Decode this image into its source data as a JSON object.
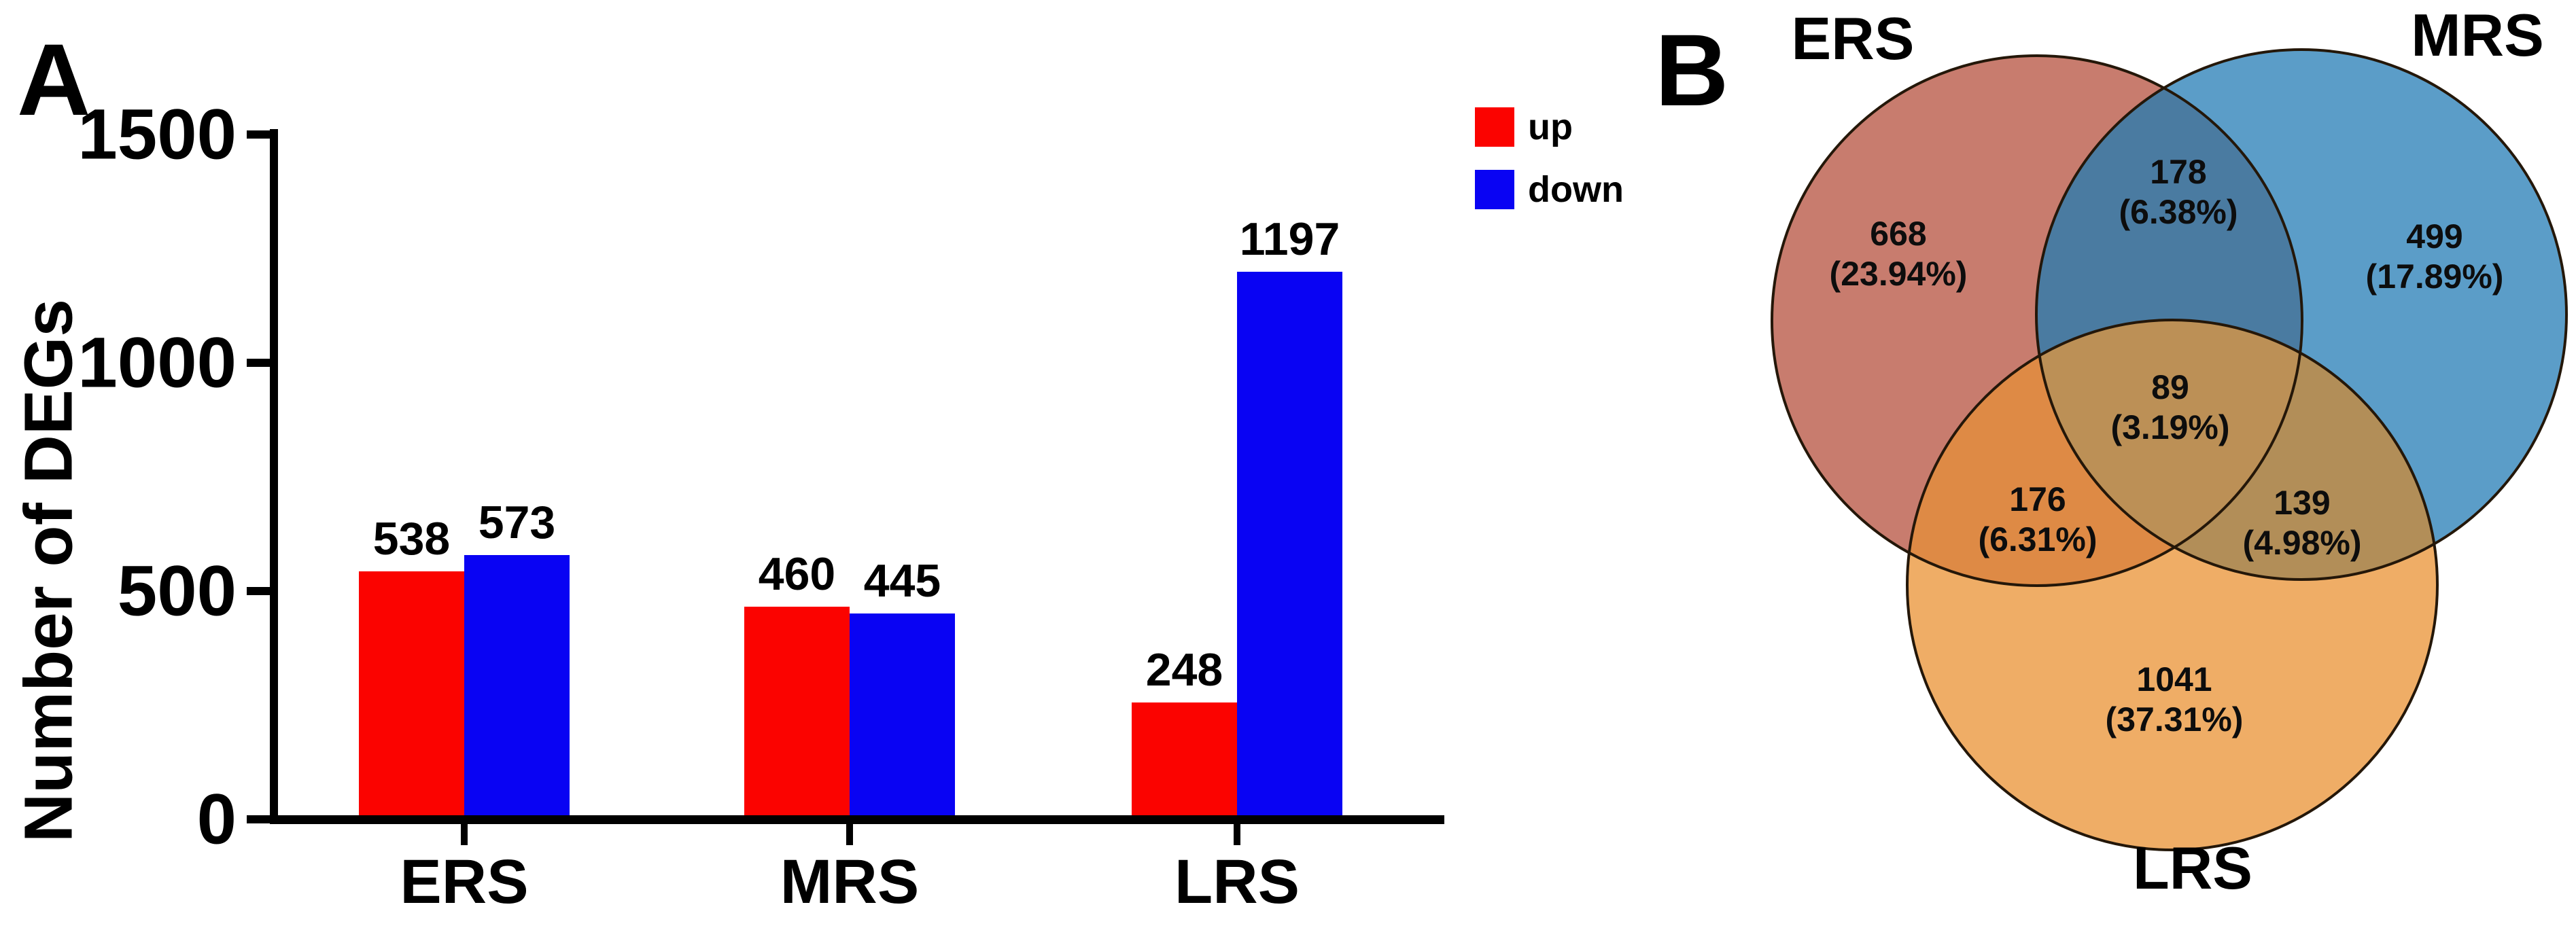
{
  "chart_data": [
    {
      "type": "bar",
      "panel_label": "A",
      "ylabel": "Number of DEGs",
      "ylim": [
        0,
        1500
      ],
      "yticks": [
        1500,
        1000,
        500,
        0
      ],
      "ytick_labels": [
        "1500",
        "1000",
        "500",
        "0"
      ],
      "categories": [
        "ERS",
        "MRS",
        "LRS"
      ],
      "series": [
        {
          "name": "up",
          "color": "#fb0300",
          "values": [
            538,
            460,
            248
          ]
        },
        {
          "name": "down",
          "color": "#0903f3",
          "values": [
            573,
            445,
            1197
          ]
        }
      ],
      "grid": false,
      "legend_position": "top-right"
    },
    {
      "type": "venn",
      "panel_label": "B",
      "sets": [
        {
          "name": "ERS",
          "color": "#c87c6e"
        },
        {
          "name": "MRS",
          "color": "#5b9dc8"
        },
        {
          "name": "LRS",
          "color": "#efad66"
        }
      ],
      "overlap_colors": {
        "ers_mrs": "#4a7ba1",
        "ers_lrs": "#de8a45",
        "mrs_lrs": "#b28e58",
        "center": "#bc9056",
        "outline": "#241709"
      },
      "regions": [
        {
          "region": "ERS_only",
          "count": "668",
          "pct_label": "(23.94%)"
        },
        {
          "region": "ERS_MRS",
          "count": "178",
          "pct_label": "(6.38%)"
        },
        {
          "region": "MRS_only",
          "count": "499",
          "pct_label": "(17.89%)"
        },
        {
          "region": "ERS_MRS_LRS",
          "count": "89",
          "pct_label": "(3.19%)"
        },
        {
          "region": "ERS_LRS",
          "count": "176",
          "pct_label": "(6.31%)"
        },
        {
          "region": "MRS_LRS",
          "count": "139",
          "pct_label": "(4.98%)"
        },
        {
          "region": "LRS_only",
          "count": "1041",
          "pct_label": "(37.31%)"
        }
      ]
    }
  ]
}
